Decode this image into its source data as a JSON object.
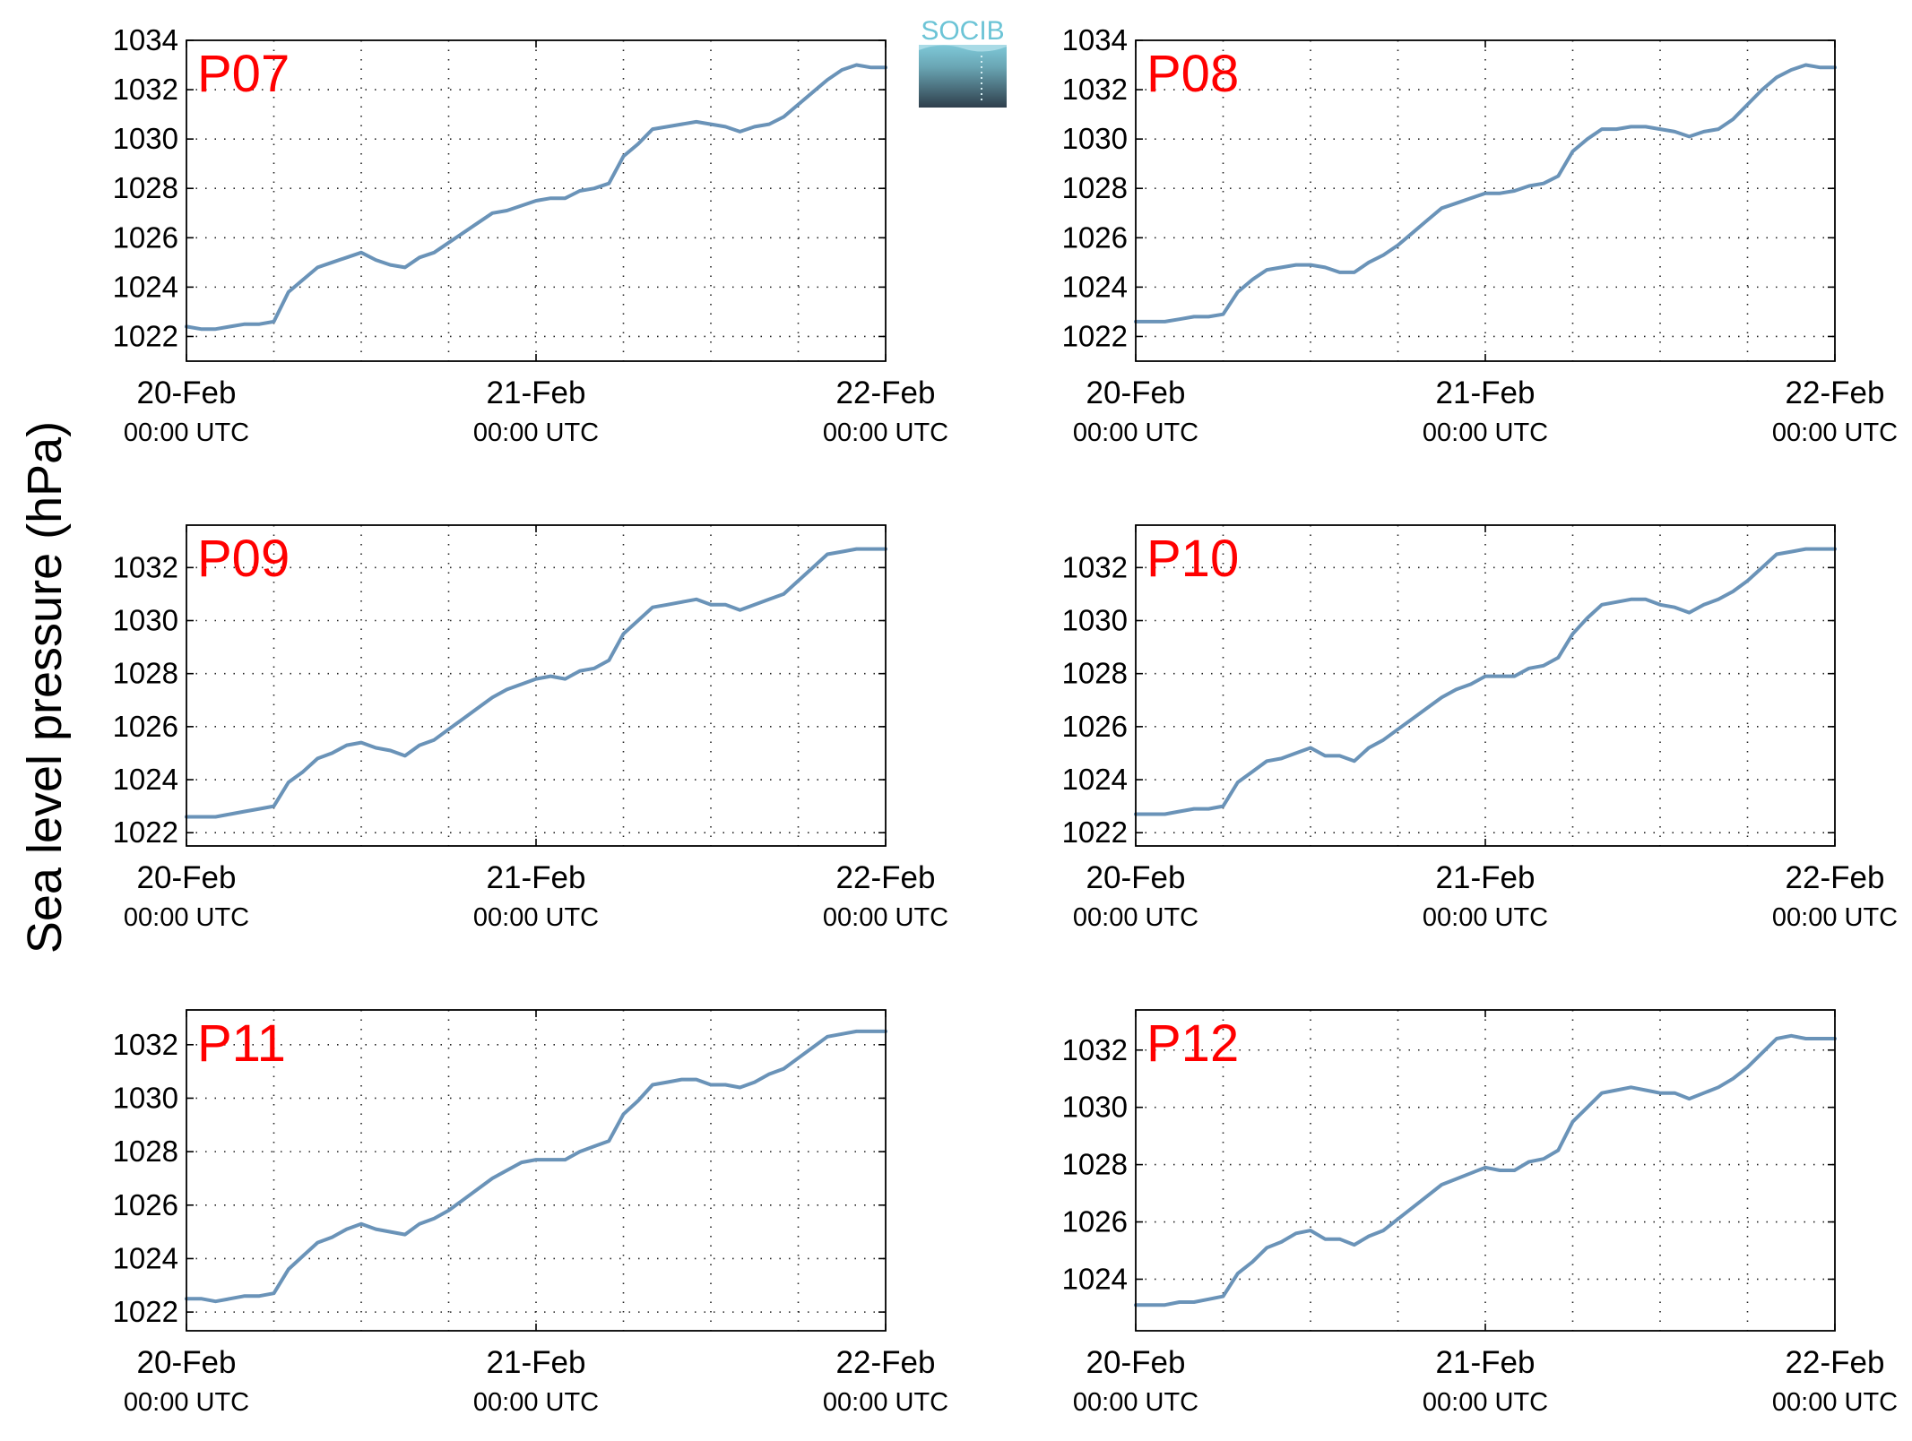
{
  "figure": {
    "ylabel": "Sea level pressure (hPa)",
    "logo_text": "SOCIB",
    "line_color": "#6a93b8",
    "title_color": "#ff0000",
    "grid": true
  },
  "chart_data": [
    {
      "type": "line",
      "title": "P07",
      "x_ticks": [
        {
          "day": "20-Feb",
          "time": "00:00 UTC"
        },
        {
          "day": "21-Feb",
          "time": "00:00 UTC"
        },
        {
          "day": "22-Feb",
          "time": "00:00 UTC"
        }
      ],
      "xlim_hours": [
        0,
        48
      ],
      "ylim": [
        1021.0,
        1034.0
      ],
      "yticks": [
        1022,
        1024,
        1026,
        1028,
        1030,
        1032,
        1034
      ],
      "x_hours": [
        0,
        1,
        2,
        3,
        4,
        5,
        6,
        7,
        8,
        9,
        10,
        11,
        12,
        13,
        14,
        15,
        16,
        17,
        18,
        19,
        20,
        21,
        22,
        23,
        24,
        25,
        26,
        27,
        28,
        29,
        30,
        31,
        32,
        33,
        34,
        35,
        36,
        37,
        38,
        39,
        40,
        41,
        42,
        43,
        44,
        45,
        46,
        47,
        48
      ],
      "values": [
        1022.4,
        1022.3,
        1022.3,
        1022.4,
        1022.5,
        1022.5,
        1022.6,
        1023.8,
        1024.3,
        1024.8,
        1025.0,
        1025.2,
        1025.4,
        1025.1,
        1024.9,
        1024.8,
        1025.2,
        1025.4,
        1025.8,
        1026.2,
        1026.6,
        1027.0,
        1027.1,
        1027.3,
        1027.5,
        1027.6,
        1027.6,
        1027.9,
        1028.0,
        1028.2,
        1029.3,
        1029.8,
        1030.4,
        1030.5,
        1030.6,
        1030.7,
        1030.6,
        1030.5,
        1030.3,
        1030.5,
        1030.6,
        1030.9,
        1031.4,
        1031.9,
        1032.4,
        1032.8,
        1033.0,
        1032.9,
        1032.9
      ]
    },
    {
      "type": "line",
      "title": "P08",
      "x_ticks": [
        {
          "day": "20-Feb",
          "time": "00:00 UTC"
        },
        {
          "day": "21-Feb",
          "time": "00:00 UTC"
        },
        {
          "day": "22-Feb",
          "time": "00:00 UTC"
        }
      ],
      "xlim_hours": [
        0,
        48
      ],
      "ylim": [
        1021.0,
        1034.0
      ],
      "yticks": [
        1022,
        1024,
        1026,
        1028,
        1030,
        1032,
        1034
      ],
      "x_hours": [
        0,
        1,
        2,
        3,
        4,
        5,
        6,
        7,
        8,
        9,
        10,
        11,
        12,
        13,
        14,
        15,
        16,
        17,
        18,
        19,
        20,
        21,
        22,
        23,
        24,
        25,
        26,
        27,
        28,
        29,
        30,
        31,
        32,
        33,
        34,
        35,
        36,
        37,
        38,
        39,
        40,
        41,
        42,
        43,
        44,
        45,
        46,
        47,
        48
      ],
      "values": [
        1022.6,
        1022.6,
        1022.6,
        1022.7,
        1022.8,
        1022.8,
        1022.9,
        1023.8,
        1024.3,
        1024.7,
        1024.8,
        1024.9,
        1024.9,
        1024.8,
        1024.6,
        1024.6,
        1025.0,
        1025.3,
        1025.7,
        1026.2,
        1026.7,
        1027.2,
        1027.4,
        1027.6,
        1027.8,
        1027.8,
        1027.9,
        1028.1,
        1028.2,
        1028.5,
        1029.5,
        1030.0,
        1030.4,
        1030.4,
        1030.5,
        1030.5,
        1030.4,
        1030.3,
        1030.1,
        1030.3,
        1030.4,
        1030.8,
        1031.4,
        1032.0,
        1032.5,
        1032.8,
        1033.0,
        1032.9,
        1032.9
      ]
    },
    {
      "type": "line",
      "title": "P09",
      "x_ticks": [
        {
          "day": "20-Feb",
          "time": "00:00 UTC"
        },
        {
          "day": "21-Feb",
          "time": "00:00 UTC"
        },
        {
          "day": "22-Feb",
          "time": "00:00 UTC"
        }
      ],
      "xlim_hours": [
        0,
        48
      ],
      "ylim": [
        1021.5,
        1033.6
      ],
      "yticks": [
        1022,
        1024,
        1026,
        1028,
        1030,
        1032
      ],
      "x_hours": [
        0,
        1,
        2,
        3,
        4,
        5,
        6,
        7,
        8,
        9,
        10,
        11,
        12,
        13,
        14,
        15,
        16,
        17,
        18,
        19,
        20,
        21,
        22,
        23,
        24,
        25,
        26,
        27,
        28,
        29,
        30,
        31,
        32,
        33,
        34,
        35,
        36,
        37,
        38,
        39,
        40,
        41,
        42,
        43,
        44,
        45,
        46,
        47,
        48
      ],
      "values": [
        1022.6,
        1022.6,
        1022.6,
        1022.7,
        1022.8,
        1022.9,
        1023.0,
        1023.9,
        1024.3,
        1024.8,
        1025.0,
        1025.3,
        1025.4,
        1025.2,
        1025.1,
        1024.9,
        1025.3,
        1025.5,
        1025.9,
        1026.3,
        1026.7,
        1027.1,
        1027.4,
        1027.6,
        1027.8,
        1027.9,
        1027.8,
        1028.1,
        1028.2,
        1028.5,
        1029.5,
        1030.0,
        1030.5,
        1030.6,
        1030.7,
        1030.8,
        1030.6,
        1030.6,
        1030.4,
        1030.6,
        1030.8,
        1031.0,
        1031.5,
        1032.0,
        1032.5,
        1032.6,
        1032.7,
        1032.7,
        1032.7
      ]
    },
    {
      "type": "line",
      "title": "P10",
      "x_ticks": [
        {
          "day": "20-Feb",
          "time": "00:00 UTC"
        },
        {
          "day": "21-Feb",
          "time": "00:00 UTC"
        },
        {
          "day": "22-Feb",
          "time": "00:00 UTC"
        }
      ],
      "xlim_hours": [
        0,
        48
      ],
      "ylim": [
        1021.5,
        1033.6
      ],
      "yticks": [
        1022,
        1024,
        1026,
        1028,
        1030,
        1032
      ],
      "x_hours": [
        0,
        1,
        2,
        3,
        4,
        5,
        6,
        7,
        8,
        9,
        10,
        11,
        12,
        13,
        14,
        15,
        16,
        17,
        18,
        19,
        20,
        21,
        22,
        23,
        24,
        25,
        26,
        27,
        28,
        29,
        30,
        31,
        32,
        33,
        34,
        35,
        36,
        37,
        38,
        39,
        40,
        41,
        42,
        43,
        44,
        45,
        46,
        47,
        48
      ],
      "values": [
        1022.7,
        1022.7,
        1022.7,
        1022.8,
        1022.9,
        1022.9,
        1023.0,
        1023.9,
        1024.3,
        1024.7,
        1024.8,
        1025.0,
        1025.2,
        1024.9,
        1024.9,
        1024.7,
        1025.2,
        1025.5,
        1025.9,
        1026.3,
        1026.7,
        1027.1,
        1027.4,
        1027.6,
        1027.9,
        1027.9,
        1027.9,
        1028.2,
        1028.3,
        1028.6,
        1029.5,
        1030.1,
        1030.6,
        1030.7,
        1030.8,
        1030.8,
        1030.6,
        1030.5,
        1030.3,
        1030.6,
        1030.8,
        1031.1,
        1031.5,
        1032.0,
        1032.5,
        1032.6,
        1032.7,
        1032.7,
        1032.7
      ]
    },
    {
      "type": "line",
      "title": "P11",
      "x_ticks": [
        {
          "day": "20-Feb",
          "time": "00:00 UTC"
        },
        {
          "day": "21-Feb",
          "time": "00:00 UTC"
        },
        {
          "day": "22-Feb",
          "time": "00:00 UTC"
        }
      ],
      "xlim_hours": [
        0,
        48
      ],
      "ylim": [
        1021.3,
        1033.3
      ],
      "yticks": [
        1022,
        1024,
        1026,
        1028,
        1030,
        1032
      ],
      "x_hours": [
        0,
        1,
        2,
        3,
        4,
        5,
        6,
        7,
        8,
        9,
        10,
        11,
        12,
        13,
        14,
        15,
        16,
        17,
        18,
        19,
        20,
        21,
        22,
        23,
        24,
        25,
        26,
        27,
        28,
        29,
        30,
        31,
        32,
        33,
        34,
        35,
        36,
        37,
        38,
        39,
        40,
        41,
        42,
        43,
        44,
        45,
        46,
        47,
        48
      ],
      "values": [
        1022.5,
        1022.5,
        1022.4,
        1022.5,
        1022.6,
        1022.6,
        1022.7,
        1023.6,
        1024.1,
        1024.6,
        1024.8,
        1025.1,
        1025.3,
        1025.1,
        1025.0,
        1024.9,
        1025.3,
        1025.5,
        1025.8,
        1026.2,
        1026.6,
        1027.0,
        1027.3,
        1027.6,
        1027.7,
        1027.7,
        1027.7,
        1028.0,
        1028.2,
        1028.4,
        1029.4,
        1029.9,
        1030.5,
        1030.6,
        1030.7,
        1030.7,
        1030.5,
        1030.5,
        1030.4,
        1030.6,
        1030.9,
        1031.1,
        1031.5,
        1031.9,
        1032.3,
        1032.4,
        1032.5,
        1032.5,
        1032.5
      ]
    },
    {
      "type": "line",
      "title": "P12",
      "x_ticks": [
        {
          "day": "20-Feb",
          "time": "00:00 UTC"
        },
        {
          "day": "21-Feb",
          "time": "00:00 UTC"
        },
        {
          "day": "22-Feb",
          "time": "00:00 UTC"
        }
      ],
      "xlim_hours": [
        0,
        48
      ],
      "ylim": [
        1022.2,
        1033.4
      ],
      "yticks": [
        1024,
        1026,
        1028,
        1030,
        1032
      ],
      "x_hours": [
        0,
        1,
        2,
        3,
        4,
        5,
        6,
        7,
        8,
        9,
        10,
        11,
        12,
        13,
        14,
        15,
        16,
        17,
        18,
        19,
        20,
        21,
        22,
        23,
        24,
        25,
        26,
        27,
        28,
        29,
        30,
        31,
        32,
        33,
        34,
        35,
        36,
        37,
        38,
        39,
        40,
        41,
        42,
        43,
        44,
        45,
        46,
        47,
        48
      ],
      "values": [
        1023.1,
        1023.1,
        1023.1,
        1023.2,
        1023.2,
        1023.3,
        1023.4,
        1024.2,
        1024.6,
        1025.1,
        1025.3,
        1025.6,
        1025.7,
        1025.4,
        1025.4,
        1025.2,
        1025.5,
        1025.7,
        1026.1,
        1026.5,
        1026.9,
        1027.3,
        1027.5,
        1027.7,
        1027.9,
        1027.8,
        1027.8,
        1028.1,
        1028.2,
        1028.5,
        1029.5,
        1030.0,
        1030.5,
        1030.6,
        1030.7,
        1030.6,
        1030.5,
        1030.5,
        1030.3,
        1030.5,
        1030.7,
        1031.0,
        1031.4,
        1031.9,
        1032.4,
        1032.5,
        1032.4,
        1032.4,
        1032.4
      ]
    }
  ]
}
